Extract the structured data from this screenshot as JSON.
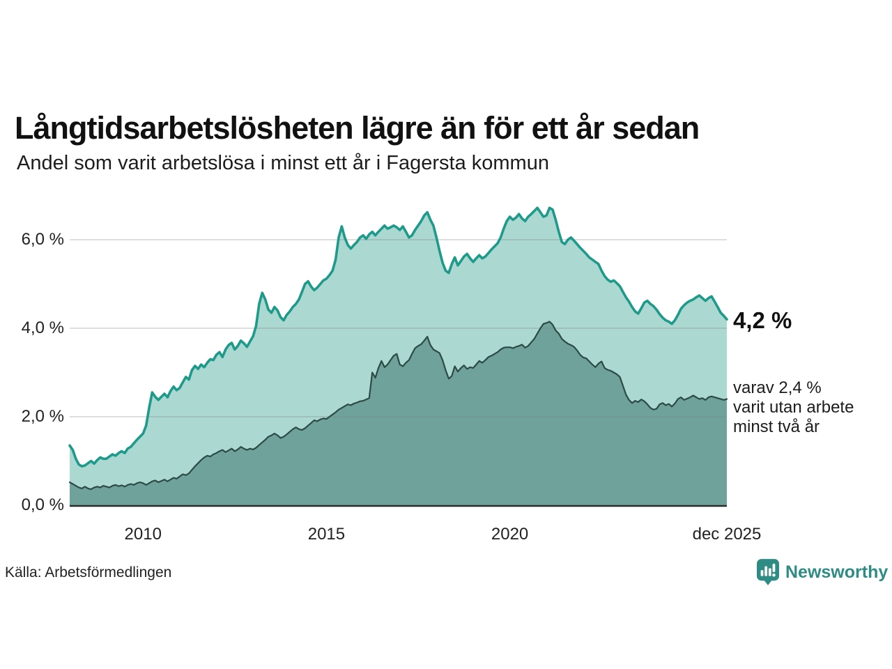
{
  "header": {
    "title": "Långtidsarbetslösheten lägre än för ett år sedan",
    "subtitle": "Andel som varit arbetslösa i minst ett år i Fagersta kommun"
  },
  "annotations": {
    "latest_total": "4,2 %",
    "subset_lines": [
      "varav 2,4 %",
      "varit utan arbete",
      "minst två år"
    ]
  },
  "footer": {
    "source": "Källa: Arbetsförmedlingen",
    "brand": "Newsworthy"
  },
  "colors": {
    "total_line": "#1e9a8b",
    "total_fill": "#abd8d1",
    "subset_line": "#2c4a46",
    "subset_fill": "#6fa29a",
    "gridline": "rgba(130,130,130,0.35)",
    "axis_line": "#2b2b2b",
    "brand_teal": "#2f8c85"
  },
  "chart_data": {
    "type": "area",
    "title": "Långtidsarbetslösheten lägre än för ett år sedan",
    "subtitle": "Andel som varit arbetslösa i minst ett år i Fagersta kommun",
    "x_start": "2008-01",
    "x_end": "2025-12",
    "x_interval": "monthly",
    "ylim": [
      0,
      6.95
    ],
    "grid": true,
    "y_ticks": [
      {
        "label": "0,0 %",
        "value": 0
      },
      {
        "label": "2,0 %",
        "value": 2
      },
      {
        "label": "4,0 %",
        "value": 4
      },
      {
        "label": "6,0 %",
        "value": 6
      }
    ],
    "x_ticks": [
      {
        "label": "2010",
        "month_index": 24
      },
      {
        "label": "2015",
        "month_index": 84
      },
      {
        "label": "2020",
        "month_index": 144
      },
      {
        "label": "dec 2025",
        "month_index": 215
      }
    ],
    "end_labels": {
      "total": "4,2 %",
      "subset": "varav 2,4 % varit utan arbete minst två år"
    },
    "series": [
      {
        "name": "Arbetslösa minst ett år",
        "values": [
          1.35,
          1.25,
          1.05,
          0.92,
          0.88,
          0.9,
          0.95,
          1.0,
          0.94,
          1.02,
          1.08,
          1.05,
          1.05,
          1.1,
          1.15,
          1.12,
          1.18,
          1.22,
          1.18,
          1.28,
          1.32,
          1.4,
          1.48,
          1.55,
          1.62,
          1.8,
          2.2,
          2.55,
          2.45,
          2.38,
          2.45,
          2.52,
          2.44,
          2.58,
          2.68,
          2.6,
          2.65,
          2.78,
          2.9,
          2.84,
          3.05,
          3.15,
          3.08,
          3.18,
          3.12,
          3.22,
          3.3,
          3.28,
          3.4,
          3.46,
          3.35,
          3.52,
          3.62,
          3.67,
          3.52,
          3.6,
          3.72,
          3.66,
          3.58,
          3.7,
          3.82,
          4.05,
          4.55,
          4.8,
          4.65,
          4.42,
          4.35,
          4.48,
          4.4,
          4.25,
          4.18,
          4.3,
          4.38,
          4.48,
          4.55,
          4.65,
          4.82,
          5.0,
          5.06,
          4.94,
          4.86,
          4.92,
          5.0,
          5.08,
          5.12,
          5.2,
          5.3,
          5.55,
          6.05,
          6.3,
          6.05,
          5.88,
          5.8,
          5.88,
          5.95,
          6.05,
          6.1,
          6.02,
          6.12,
          6.18,
          6.1,
          6.18,
          6.25,
          6.32,
          6.25,
          6.28,
          6.32,
          6.28,
          6.22,
          6.3,
          6.18,
          6.05,
          6.1,
          6.22,
          6.32,
          6.42,
          6.55,
          6.62,
          6.45,
          6.32,
          6.05,
          5.75,
          5.48,
          5.3,
          5.25,
          5.45,
          5.6,
          5.42,
          5.52,
          5.62,
          5.68,
          5.58,
          5.5,
          5.58,
          5.65,
          5.58,
          5.62,
          5.7,
          5.78,
          5.85,
          5.92,
          6.05,
          6.25,
          6.42,
          6.52,
          6.45,
          6.5,
          6.58,
          6.48,
          6.42,
          6.52,
          6.58,
          6.65,
          6.72,
          6.62,
          6.52,
          6.55,
          6.72,
          6.68,
          6.45,
          6.18,
          5.95,
          5.9,
          6.0,
          6.05,
          5.98,
          5.9,
          5.82,
          5.75,
          5.68,
          5.6,
          5.55,
          5.5,
          5.45,
          5.3,
          5.18,
          5.1,
          5.05,
          5.08,
          5.02,
          4.95,
          4.82,
          4.7,
          4.6,
          4.48,
          4.38,
          4.33,
          4.45,
          4.58,
          4.62,
          4.55,
          4.5,
          4.42,
          4.32,
          4.24,
          4.18,
          4.15,
          4.1,
          4.18,
          4.3,
          4.44,
          4.52,
          4.58,
          4.62,
          4.65,
          4.7,
          4.74,
          4.68,
          4.62,
          4.68,
          4.72,
          4.6,
          4.48,
          4.35,
          4.28,
          4.2
        ]
      },
      {
        "name": "varav arbetslösa minst två år",
        "values": [
          0.52,
          0.48,
          0.44,
          0.4,
          0.38,
          0.42,
          0.38,
          0.36,
          0.4,
          0.42,
          0.4,
          0.44,
          0.42,
          0.4,
          0.44,
          0.46,
          0.43,
          0.45,
          0.42,
          0.46,
          0.48,
          0.46,
          0.5,
          0.52,
          0.5,
          0.46,
          0.5,
          0.54,
          0.56,
          0.52,
          0.55,
          0.58,
          0.54,
          0.58,
          0.62,
          0.6,
          0.65,
          0.7,
          0.68,
          0.72,
          0.8,
          0.88,
          0.95,
          1.02,
          1.08,
          1.12,
          1.1,
          1.15,
          1.18,
          1.22,
          1.25,
          1.2,
          1.24,
          1.28,
          1.22,
          1.26,
          1.32,
          1.28,
          1.25,
          1.28,
          1.26,
          1.3,
          1.36,
          1.42,
          1.48,
          1.55,
          1.58,
          1.62,
          1.58,
          1.52,
          1.55,
          1.6,
          1.66,
          1.72,
          1.76,
          1.72,
          1.7,
          1.74,
          1.8,
          1.86,
          1.92,
          1.9,
          1.94,
          1.96,
          1.95,
          2.0,
          2.05,
          2.1,
          2.16,
          2.2,
          2.24,
          2.28,
          2.26,
          2.3,
          2.32,
          2.35,
          2.36,
          2.39,
          2.42,
          3.0,
          2.88,
          3.1,
          3.26,
          3.12,
          3.18,
          3.28,
          3.38,
          3.42,
          3.18,
          3.14,
          3.22,
          3.28,
          3.42,
          3.55,
          3.6,
          3.64,
          3.72,
          3.81,
          3.62,
          3.52,
          3.48,
          3.44,
          3.28,
          3.05,
          2.86,
          2.92,
          3.14,
          3.02,
          3.1,
          3.16,
          3.08,
          3.12,
          3.1,
          3.18,
          3.26,
          3.22,
          3.28,
          3.35,
          3.38,
          3.42,
          3.46,
          3.52,
          3.56,
          3.57,
          3.57,
          3.55,
          3.58,
          3.6,
          3.63,
          3.56,
          3.6,
          3.68,
          3.76,
          3.88,
          4.0,
          4.1,
          4.12,
          4.15,
          4.08,
          3.95,
          3.88,
          3.76,
          3.7,
          3.65,
          3.62,
          3.58,
          3.5,
          3.4,
          3.34,
          3.32,
          3.25,
          3.18,
          3.12,
          3.2,
          3.25,
          3.1,
          3.06,
          3.04,
          3.0,
          2.96,
          2.9,
          2.7,
          2.5,
          2.38,
          2.31,
          2.36,
          2.33,
          2.39,
          2.35,
          2.28,
          2.2,
          2.16,
          2.18,
          2.28,
          2.31,
          2.26,
          2.29,
          2.23,
          2.3,
          2.4,
          2.44,
          2.38,
          2.41,
          2.44,
          2.48,
          2.44,
          2.4,
          2.42,
          2.38,
          2.44,
          2.46,
          2.44,
          2.42,
          2.4,
          2.38,
          2.4
        ]
      }
    ]
  }
}
